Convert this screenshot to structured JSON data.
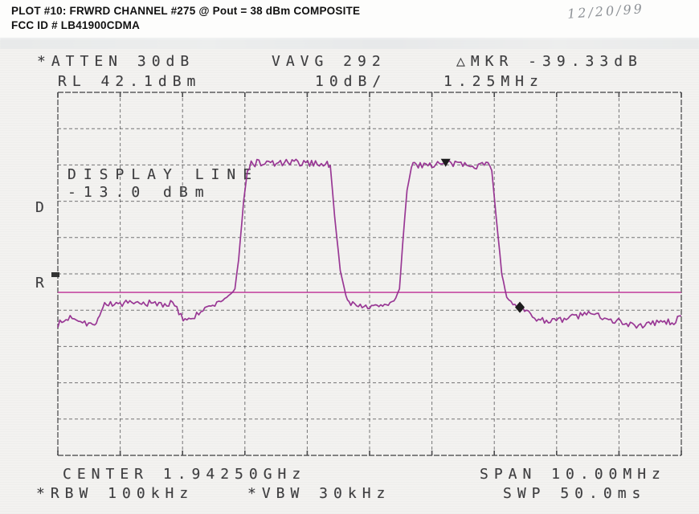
{
  "header": {
    "line1": "PLOT #10: FRWRD CHANNEL #275 @ Pout = 38 dBm COMPOSITE",
    "line2": "FCC ID # LB41900CDMA",
    "handwritten_date": "12/20/99"
  },
  "annotations": {
    "atten": "*ATTEN 30dB",
    "vavg": "VAVG 292",
    "delta_mkr": "△MKR -39.33dB",
    "ref_level": "RL 42.1dBm",
    "scale": "10dB/",
    "mkr_freq": "1.25MHz",
    "display_line_label": "DISPLAY LINE",
    "display_line_value": "-13.0 dBm",
    "d_label": "D",
    "r_label": "R",
    "center": "CENTER 1.94250GHz",
    "span": "SPAN 10.00MHz",
    "rbw": "*RBW 100kHz",
    "vbw": "*VBW 30kHz",
    "swp": "SWP 50.0ms"
  },
  "colors": {
    "trace": "#942d8f",
    "display_line": "#c2429f",
    "grid": "#4c4c4e",
    "marker": "#1c1c1c"
  },
  "chart_data": {
    "type": "line",
    "title": "FRWRD CHANNEL #275 @ Pout = 38 dBm COMPOSITE",
    "x_axis": {
      "center_ghz": 1.9425,
      "span_mhz": 10.0,
      "divisions": 10,
      "label": "CENTER 1.94250GHz  SPAN 10.00MHz"
    },
    "y_axis": {
      "ref_level_dbm": 42.1,
      "db_per_div": 10,
      "divisions": 10,
      "label": "RL 42.1dBm  10dB/"
    },
    "grid": true,
    "display_line_dbm": -13.0,
    "video_averages": 292,
    "rbw_khz": 100,
    "vbw_khz": 30,
    "sweep_ms": 50.0,
    "atten_db": 30,
    "markers": [
      {
        "name": "reference-marker",
        "shape": "triangle-down",
        "offset_mhz": 1.22,
        "dbm": 22.9
      },
      {
        "name": "delta-marker",
        "shape": "diamond",
        "offset_mhz": 2.41,
        "dbm": -17.1,
        "delta_db": -39.33,
        "delta_mhz": 1.25
      }
    ],
    "series": [
      {
        "name": "composite-trace",
        "units": [
          "offset_mhz",
          "dbm",
          "noise_pk_db"
        ],
        "waypoints": [
          [
            -5.0,
            -22.0,
            1.2
          ],
          [
            -4.77,
            -19.6,
            1.4
          ],
          [
            -4.57,
            -21.0,
            1.3
          ],
          [
            -4.41,
            -22.3,
            0.8
          ],
          [
            -4.33,
            -19.0,
            0.6
          ],
          [
            -4.25,
            -16.2,
            1.1
          ],
          [
            -3.16,
            -16.1,
            1.3
          ],
          [
            -2.99,
            -20.3,
            1.1
          ],
          [
            -2.84,
            -19.8,
            1.1
          ],
          [
            -2.64,
            -17.6,
            0.9
          ],
          [
            -2.45,
            -16.1,
            0.8
          ],
          [
            -2.26,
            -13.9,
            0.5
          ],
          [
            -2.16,
            -12.1,
            0.4
          ],
          [
            -2.1,
            -4.0,
            0.3
          ],
          [
            -2.02,
            12.0,
            0.3
          ],
          [
            -1.96,
            20.5,
            0.5
          ],
          [
            -1.9,
            22.6,
            1.3
          ],
          [
            -0.68,
            22.6,
            1.3
          ],
          [
            -0.63,
            21.5,
            0.8
          ],
          [
            -0.56,
            8.0,
            0.3
          ],
          [
            -0.47,
            -7.0,
            0.3
          ],
          [
            -0.38,
            -14.0,
            0.4
          ],
          [
            -0.33,
            -15.8,
            0.7
          ],
          [
            0.0,
            -17.2,
            0.8
          ],
          [
            0.3,
            -16.2,
            0.8
          ],
          [
            0.42,
            -14.6,
            0.5
          ],
          [
            0.48,
            -12.0,
            0.3
          ],
          [
            0.53,
            0.0,
            0.3
          ],
          [
            0.6,
            15.0,
            0.3
          ],
          [
            0.67,
            21.8,
            0.8
          ],
          [
            0.75,
            22.3,
            1.3
          ],
          [
            1.9,
            22.3,
            1.3
          ],
          [
            1.96,
            21.0,
            0.7
          ],
          [
            2.03,
            8.0,
            0.3
          ],
          [
            2.12,
            -8.0,
            0.3
          ],
          [
            2.2,
            -14.3,
            0.4
          ],
          [
            2.3,
            -15.9,
            0.6
          ],
          [
            2.42,
            -17.2,
            0.6
          ],
          [
            2.55,
            -18.8,
            0.9
          ],
          [
            2.71,
            -20.5,
            1.1
          ],
          [
            3.09,
            -20.9,
            1.1
          ],
          [
            3.25,
            -19.6,
            1.2
          ],
          [
            3.48,
            -19.0,
            1.3
          ],
          [
            3.7,
            -19.3,
            1.3
          ],
          [
            3.87,
            -20.3,
            1.2
          ],
          [
            4.15,
            -21.6,
            1.3
          ],
          [
            4.38,
            -22.4,
            1.4
          ],
          [
            4.64,
            -21.0,
            1.3
          ],
          [
            4.85,
            -21.7,
            1.4
          ],
          [
            5.0,
            -19.5,
            1.0
          ]
        ]
      }
    ]
  }
}
